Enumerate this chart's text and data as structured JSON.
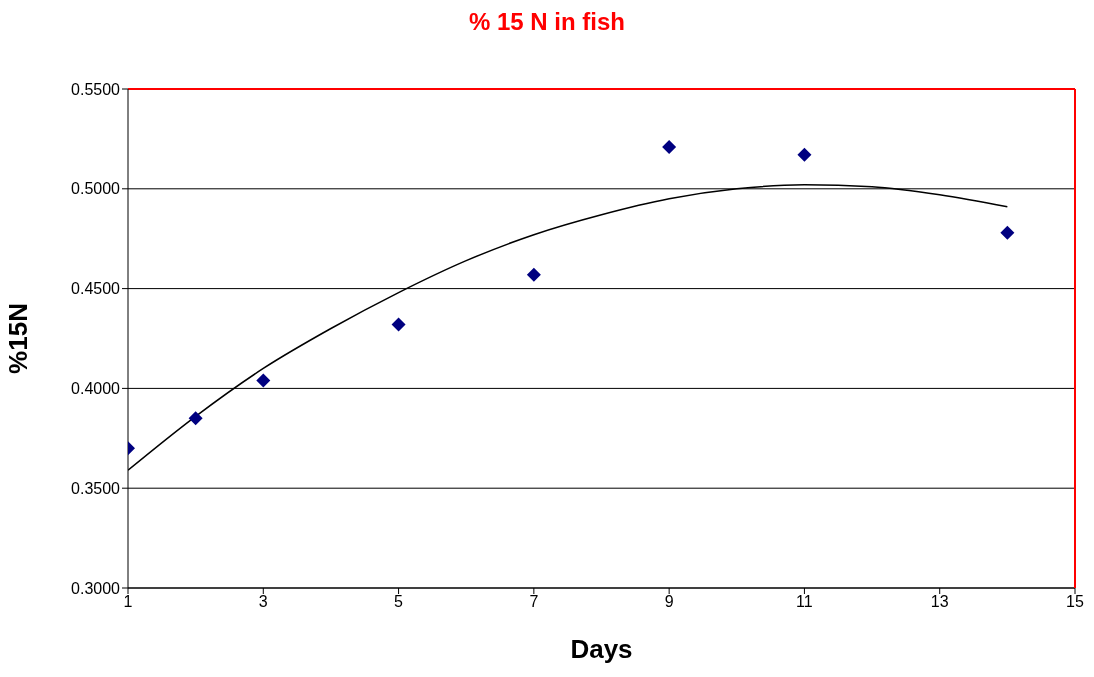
{
  "chart_data": {
    "type": "scatter",
    "title": "% 15 N in fish",
    "xlabel": "Days",
    "ylabel": "%15N",
    "x": [
      1,
      2,
      3,
      5,
      7,
      9,
      11,
      14
    ],
    "series": [
      {
        "type": "scatter",
        "color": "#000080",
        "marker": "diamond",
        "values": [
          0.37,
          0.385,
          0.404,
          0.432,
          0.457,
          0.521,
          0.517,
          0.478
        ]
      },
      {
        "type": "line",
        "color": "#000000",
        "marker": "none",
        "x": [
          1,
          2,
          3,
          4,
          5,
          6,
          7,
          8,
          9,
          10,
          11,
          12,
          13,
          14
        ],
        "values": [
          0.359,
          0.386,
          0.41,
          0.43,
          0.448,
          0.464,
          0.477,
          0.487,
          0.495,
          0.5,
          0.502,
          0.501,
          0.497,
          0.491
        ]
      }
    ],
    "xlim": [
      1,
      15
    ],
    "xticks": [
      1,
      3,
      5,
      7,
      9,
      11,
      13,
      15
    ],
    "ylim": [
      0.3,
      0.55
    ],
    "yticks": [
      {
        "value": 0.3,
        "label": "0.3000"
      },
      {
        "value": 0.35,
        "label": "0.3500"
      },
      {
        "value": 0.4,
        "label": "0.4000"
      },
      {
        "value": 0.45,
        "label": "0.4500"
      },
      {
        "value": 0.5,
        "label": "0.5000"
      },
      {
        "value": 0.55,
        "label": "0.5500"
      }
    ],
    "grid": "y",
    "legend": false
  }
}
